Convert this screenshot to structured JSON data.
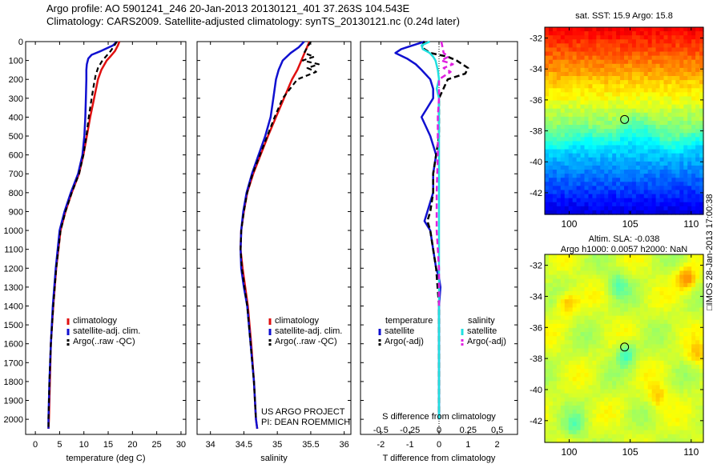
{
  "title_line1": "Argo profile: AO 5901241_246 20-Jan-2013 20130121_401 37.263S 104.543E",
  "title_line2": "Climatology: CARS2009. Satellite-adjusted climatology: synTS_20130121.nc (0.24d later)",
  "credit": "□IMOS 28-Jan-2013 17:00:38",
  "project_line1": "US ARGO PROJECT",
  "project_line2": "PI: DEAN ROEMMICH",
  "colors": {
    "climatology": "#e01010",
    "satellite": "#1010d0",
    "argo_t": "#000000",
    "satellite_s": "#20e0e0",
    "argo_s": "#e020e0"
  },
  "chart_data": [
    {
      "type": "line",
      "name": "temperature-profile",
      "xlabel": "temperature (deg C)",
      "xlim": [
        -2,
        31
      ],
      "ylim": [
        2080,
        0
      ],
      "xticks": [
        0,
        5,
        10,
        15,
        20,
        25,
        30
      ],
      "yticks": [
        0,
        100,
        200,
        300,
        400,
        500,
        600,
        700,
        800,
        900,
        1000,
        1100,
        1200,
        1300,
        1400,
        1500,
        1600,
        1700,
        1800,
        1900,
        2000
      ],
      "legend": [
        "climatology",
        "satellite-adj. clim.",
        "Argo(..raw -QC)"
      ],
      "series": [
        {
          "name": "climatology",
          "depth": [
            0,
            20,
            50,
            80,
            100,
            150,
            200,
            300,
            400,
            500,
            600,
            700,
            800,
            900,
            1000,
            1200,
            1400,
            1600,
            1800,
            2000,
            2050
          ],
          "values": [
            17.3,
            17.0,
            16.4,
            15.4,
            14.7,
            13.6,
            12.9,
            12.1,
            11.3,
            10.6,
            9.9,
            9.0,
            7.5,
            6.2,
            5.2,
            4.3,
            3.7,
            3.2,
            3.0,
            2.8,
            2.7
          ]
        },
        {
          "name": "satellite-adj. clim.",
          "depth": [
            0,
            20,
            50,
            70,
            90,
            120,
            150,
            200,
            300,
            400,
            500,
            600,
            700,
            800,
            900,
            1000,
            1200,
            1400,
            1600,
            1800,
            2000,
            2050
          ],
          "values": [
            16.8,
            16.0,
            13.5,
            11.6,
            10.9,
            10.6,
            10.5,
            10.5,
            10.4,
            10.3,
            10.1,
            9.7,
            8.8,
            7.3,
            6.0,
            5.0,
            4.2,
            3.6,
            3.2,
            2.9,
            2.7,
            2.7
          ]
        },
        {
          "name": "Argo(..raw -QC)",
          "depth": [
            0,
            20,
            50,
            80,
            100,
            140,
            180,
            220,
            300,
            400,
            500,
            600,
            700,
            800,
            900,
            1000,
            1200,
            1400,
            1600,
            1800,
            2000,
            2040
          ],
          "values": [
            16.8,
            16.3,
            15.5,
            14.5,
            13.8,
            12.9,
            12.4,
            12.1,
            11.6,
            11.0,
            10.5,
            9.9,
            9.0,
            7.5,
            6.2,
            5.2,
            4.3,
            3.7,
            3.2,
            2.9,
            2.7,
            2.7
          ]
        }
      ]
    },
    {
      "type": "line",
      "name": "salinity-profile",
      "xlabel": "salinity",
      "xlim": [
        33.8,
        36.1
      ],
      "ylim": [
        2080,
        0
      ],
      "xticks": [
        34,
        34.5,
        35,
        35.5,
        36
      ],
      "legend": [
        "climatology",
        "satellite-adj. clim.",
        "Argo(..raw -QC)"
      ],
      "series": [
        {
          "name": "climatology",
          "depth": [
            0,
            50,
            100,
            150,
            200,
            300,
            400,
            500,
            600,
            700,
            800,
            900,
            1000,
            1100,
            1200,
            1300,
            1400,
            1600,
            1800,
            2000,
            2050
          ],
          "values": [
            35.48,
            35.42,
            35.36,
            35.3,
            35.22,
            35.1,
            34.98,
            34.86,
            34.75,
            34.64,
            34.55,
            34.5,
            34.46,
            34.45,
            34.48,
            34.52,
            34.56,
            34.61,
            34.65,
            34.68,
            34.7
          ]
        },
        {
          "name": "satellite-adj. clim.",
          "depth": [
            0,
            30,
            60,
            100,
            150,
            200,
            300,
            400,
            500,
            600,
            700,
            800,
            900,
            1000,
            1100,
            1200,
            1300,
            1400,
            1600,
            1800,
            2000,
            2050
          ],
          "values": [
            35.4,
            35.32,
            35.2,
            35.08,
            35.02,
            34.98,
            34.94,
            34.9,
            34.82,
            34.72,
            34.62,
            34.54,
            34.49,
            34.46,
            34.45,
            34.46,
            34.5,
            34.55,
            34.6,
            34.65,
            34.68,
            34.7
          ]
        },
        {
          "name": "Argo(..raw -QC)",
          "depth": [
            0,
            30,
            60,
            80,
            100,
            120,
            140,
            160,
            200,
            300,
            400,
            500,
            600,
            700,
            800,
            900,
            1000,
            1100,
            1200,
            1400,
            1600,
            1800,
            2000
          ],
          "values": [
            35.5,
            35.45,
            35.4,
            35.55,
            35.38,
            35.62,
            35.45,
            35.58,
            35.3,
            35.08,
            34.96,
            34.85,
            34.74,
            34.63,
            34.55,
            34.5,
            34.46,
            34.45,
            34.47,
            34.55,
            34.6,
            34.65,
            34.68
          ]
        }
      ]
    },
    {
      "type": "line",
      "name": "difference-profile",
      "xlabel": "T difference from climatology",
      "xlabel2": "S difference from climatology",
      "xlim": [
        -2.7,
        2.7
      ],
      "ylim": [
        2080,
        0
      ],
      "xticks": [
        -2,
        -1,
        0,
        1,
        2
      ],
      "xticks_s": [
        -0.5,
        -0.25,
        0,
        0.25,
        0.5
      ],
      "xtick_labels_s": [
        "-0.5",
        "-0.25",
        "0",
        "0.25",
        "0.5"
      ],
      "legend_titles": [
        "temperature",
        "salinity"
      ],
      "legend": [
        "satellite",
        "Argo(-adj)",
        "satellite",
        "Argo(-adj)"
      ],
      "series": [
        {
          "name": "T satellite",
          "depth": [
            0,
            20,
            40,
            60,
            90,
            120,
            150,
            200,
            250,
            300,
            350,
            400,
            500,
            600,
            700,
            800,
            900,
            950,
            1000,
            1100,
            1200,
            1250,
            1300,
            1400,
            1600,
            1800,
            2000
          ],
          "values": [
            -0.5,
            -0.9,
            -1.3,
            -1.5,
            -1.1,
            -0.8,
            -0.6,
            -0.3,
            -0.2,
            -0.2,
            -0.4,
            -0.6,
            -0.3,
            -0.1,
            -0.2,
            -0.2,
            -0.4,
            -0.5,
            -0.3,
            -0.2,
            -0.1,
            0.0,
            0.05,
            0.0,
            0.0,
            0.0,
            0.0
          ]
        },
        {
          "name": "T Argo(-adj)",
          "depth": [
            0,
            30,
            60,
            80,
            100,
            140,
            170,
            200,
            300,
            400,
            500,
            600,
            700,
            800,
            900,
            950,
            1000,
            1100,
            1200,
            1400,
            1600,
            1800,
            2000
          ],
          "values": [
            -0.5,
            -0.6,
            -0.3,
            0.3,
            0.6,
            1.0,
            0.9,
            0.3,
            0.0,
            0.0,
            0.0,
            -0.1,
            -0.2,
            -0.2,
            -0.3,
            -0.4,
            -0.3,
            -0.2,
            -0.1,
            0.0,
            0.0,
            0.0,
            0.0
          ]
        },
        {
          "name": "S satellite",
          "depth": [
            0,
            20,
            40,
            60,
            80,
            100,
            150,
            200,
            250,
            300,
            400,
            500,
            600,
            700,
            800,
            1000,
            1200,
            1400,
            1600,
            1800,
            2000
          ],
          "values": [
            -0.08,
            -0.15,
            -0.14,
            -0.08,
            -0.05,
            -0.03,
            -0.01,
            0.0,
            -0.02,
            0.0,
            0.0,
            0.0,
            0.0,
            0.0,
            0.0,
            0.0,
            0.0,
            0.0,
            0.0,
            0.0,
            0.0
          ]
        },
        {
          "name": "S Argo(-adj)",
          "depth": [
            0,
            30,
            60,
            80,
            100,
            120,
            140,
            160,
            200,
            300,
            400,
            600,
            800,
            1000,
            1100,
            1200,
            1400
          ],
          "values": [
            0.02,
            0.03,
            0.04,
            0.08,
            0.02,
            0.12,
            0.04,
            0.1,
            0.0,
            0.0,
            -0.01,
            -0.01,
            -0.02,
            -0.02,
            -0.01,
            0.0,
            0.0
          ]
        }
      ]
    },
    {
      "type": "heatmap",
      "name": "sst-map",
      "title": "sat. SST: 15.9  Argo: 15.8",
      "xlim": [
        98,
        111
      ],
      "ylim": [
        -43.4,
        -31.3
      ],
      "xticks": [
        100,
        105,
        110
      ],
      "yticks": [
        -32,
        -34,
        -36,
        -38,
        -40,
        -42
      ],
      "marker": {
        "lon": 104.543,
        "lat": -37.263
      }
    },
    {
      "type": "heatmap",
      "name": "sla-map",
      "title_line1": "Altim. SLA: -0.038",
      "title_line2": "Argo h1000: 0.0057 h2000: NaN",
      "xlim": [
        98,
        111
      ],
      "ylim": [
        -43.4,
        -31.3
      ],
      "xticks": [
        100,
        105,
        110
      ],
      "yticks": [
        -32,
        -34,
        -36,
        -38,
        -40,
        -42
      ],
      "marker": {
        "lon": 104.543,
        "lat": -37.263
      }
    }
  ]
}
